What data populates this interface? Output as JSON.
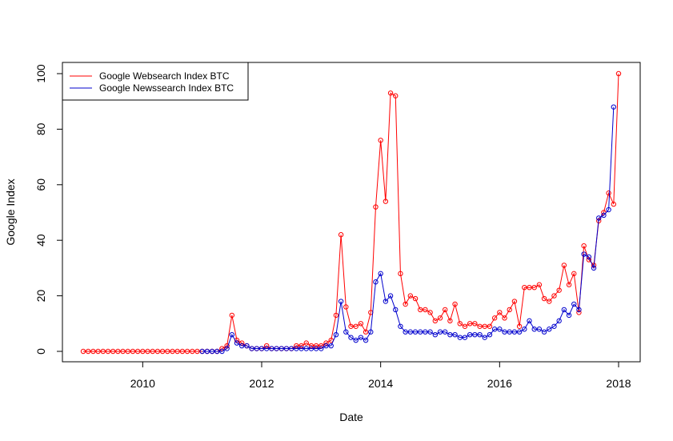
{
  "chart_data": {
    "type": "line",
    "title": "",
    "xlabel": "Date",
    "ylabel": "Google Index",
    "xlim": [
      "2009-01",
      "2018-01"
    ],
    "ylim": [
      0,
      100
    ],
    "x_ticks": [
      2010,
      2012,
      2014,
      2016,
      2018
    ],
    "y_ticks": [
      0,
      20,
      40,
      60,
      80,
      100
    ],
    "legend_position": "top-left",
    "grid": false,
    "x_start": "2009-01",
    "x_step": "month",
    "series": [
      {
        "name": "Google Websearch Index BTC",
        "color": "#ff0000",
        "values": [
          0,
          0,
          0,
          0,
          0,
          0,
          0,
          0,
          0,
          0,
          0,
          0,
          0,
          0,
          0,
          0,
          0,
          0,
          0,
          0,
          0,
          0,
          0,
          0,
          0,
          0,
          0,
          0,
          1,
          2,
          13,
          4,
          3,
          2,
          1,
          1,
          1,
          2,
          1,
          1,
          1,
          1,
          1,
          2,
          2,
          3,
          2,
          2,
          2,
          3,
          4,
          13,
          42,
          16,
          9,
          9,
          10,
          7,
          14,
          52,
          76,
          54,
          93,
          92,
          28,
          17,
          20,
          19,
          15,
          15,
          14,
          11,
          12,
          15,
          11,
          17,
          10,
          9,
          10,
          10,
          9,
          9,
          9,
          12,
          14,
          12,
          15,
          18,
          9,
          23,
          23,
          23,
          24,
          19,
          18,
          20,
          22,
          31,
          24,
          28,
          14,
          38,
          33,
          31,
          47,
          50,
          57,
          53,
          100
        ]
      },
      {
        "name": "Google Newssearch Index BTC",
        "color": "#0000cd",
        "values": [
          null,
          null,
          null,
          null,
          null,
          null,
          null,
          null,
          null,
          null,
          null,
          null,
          null,
          null,
          null,
          null,
          null,
          null,
          null,
          null,
          null,
          null,
          null,
          null,
          0,
          0,
          0,
          0,
          0,
          1,
          6,
          3,
          2,
          2,
          1,
          1,
          1,
          1,
          1,
          1,
          1,
          1,
          1,
          1,
          1,
          1,
          1,
          1,
          1,
          2,
          2,
          6,
          18,
          7,
          5,
          4,
          5,
          4,
          7,
          25,
          28,
          18,
          20,
          15,
          9,
          7,
          7,
          7,
          7,
          7,
          7,
          6,
          7,
          7,
          6,
          6,
          5,
          5,
          6,
          6,
          6,
          5,
          6,
          8,
          8,
          7,
          7,
          7,
          7,
          8,
          11,
          8,
          8,
          7,
          8,
          9,
          11,
          15,
          13,
          17,
          15,
          35,
          34,
          30,
          48,
          49,
          51,
          88,
          null
        ]
      }
    ]
  }
}
